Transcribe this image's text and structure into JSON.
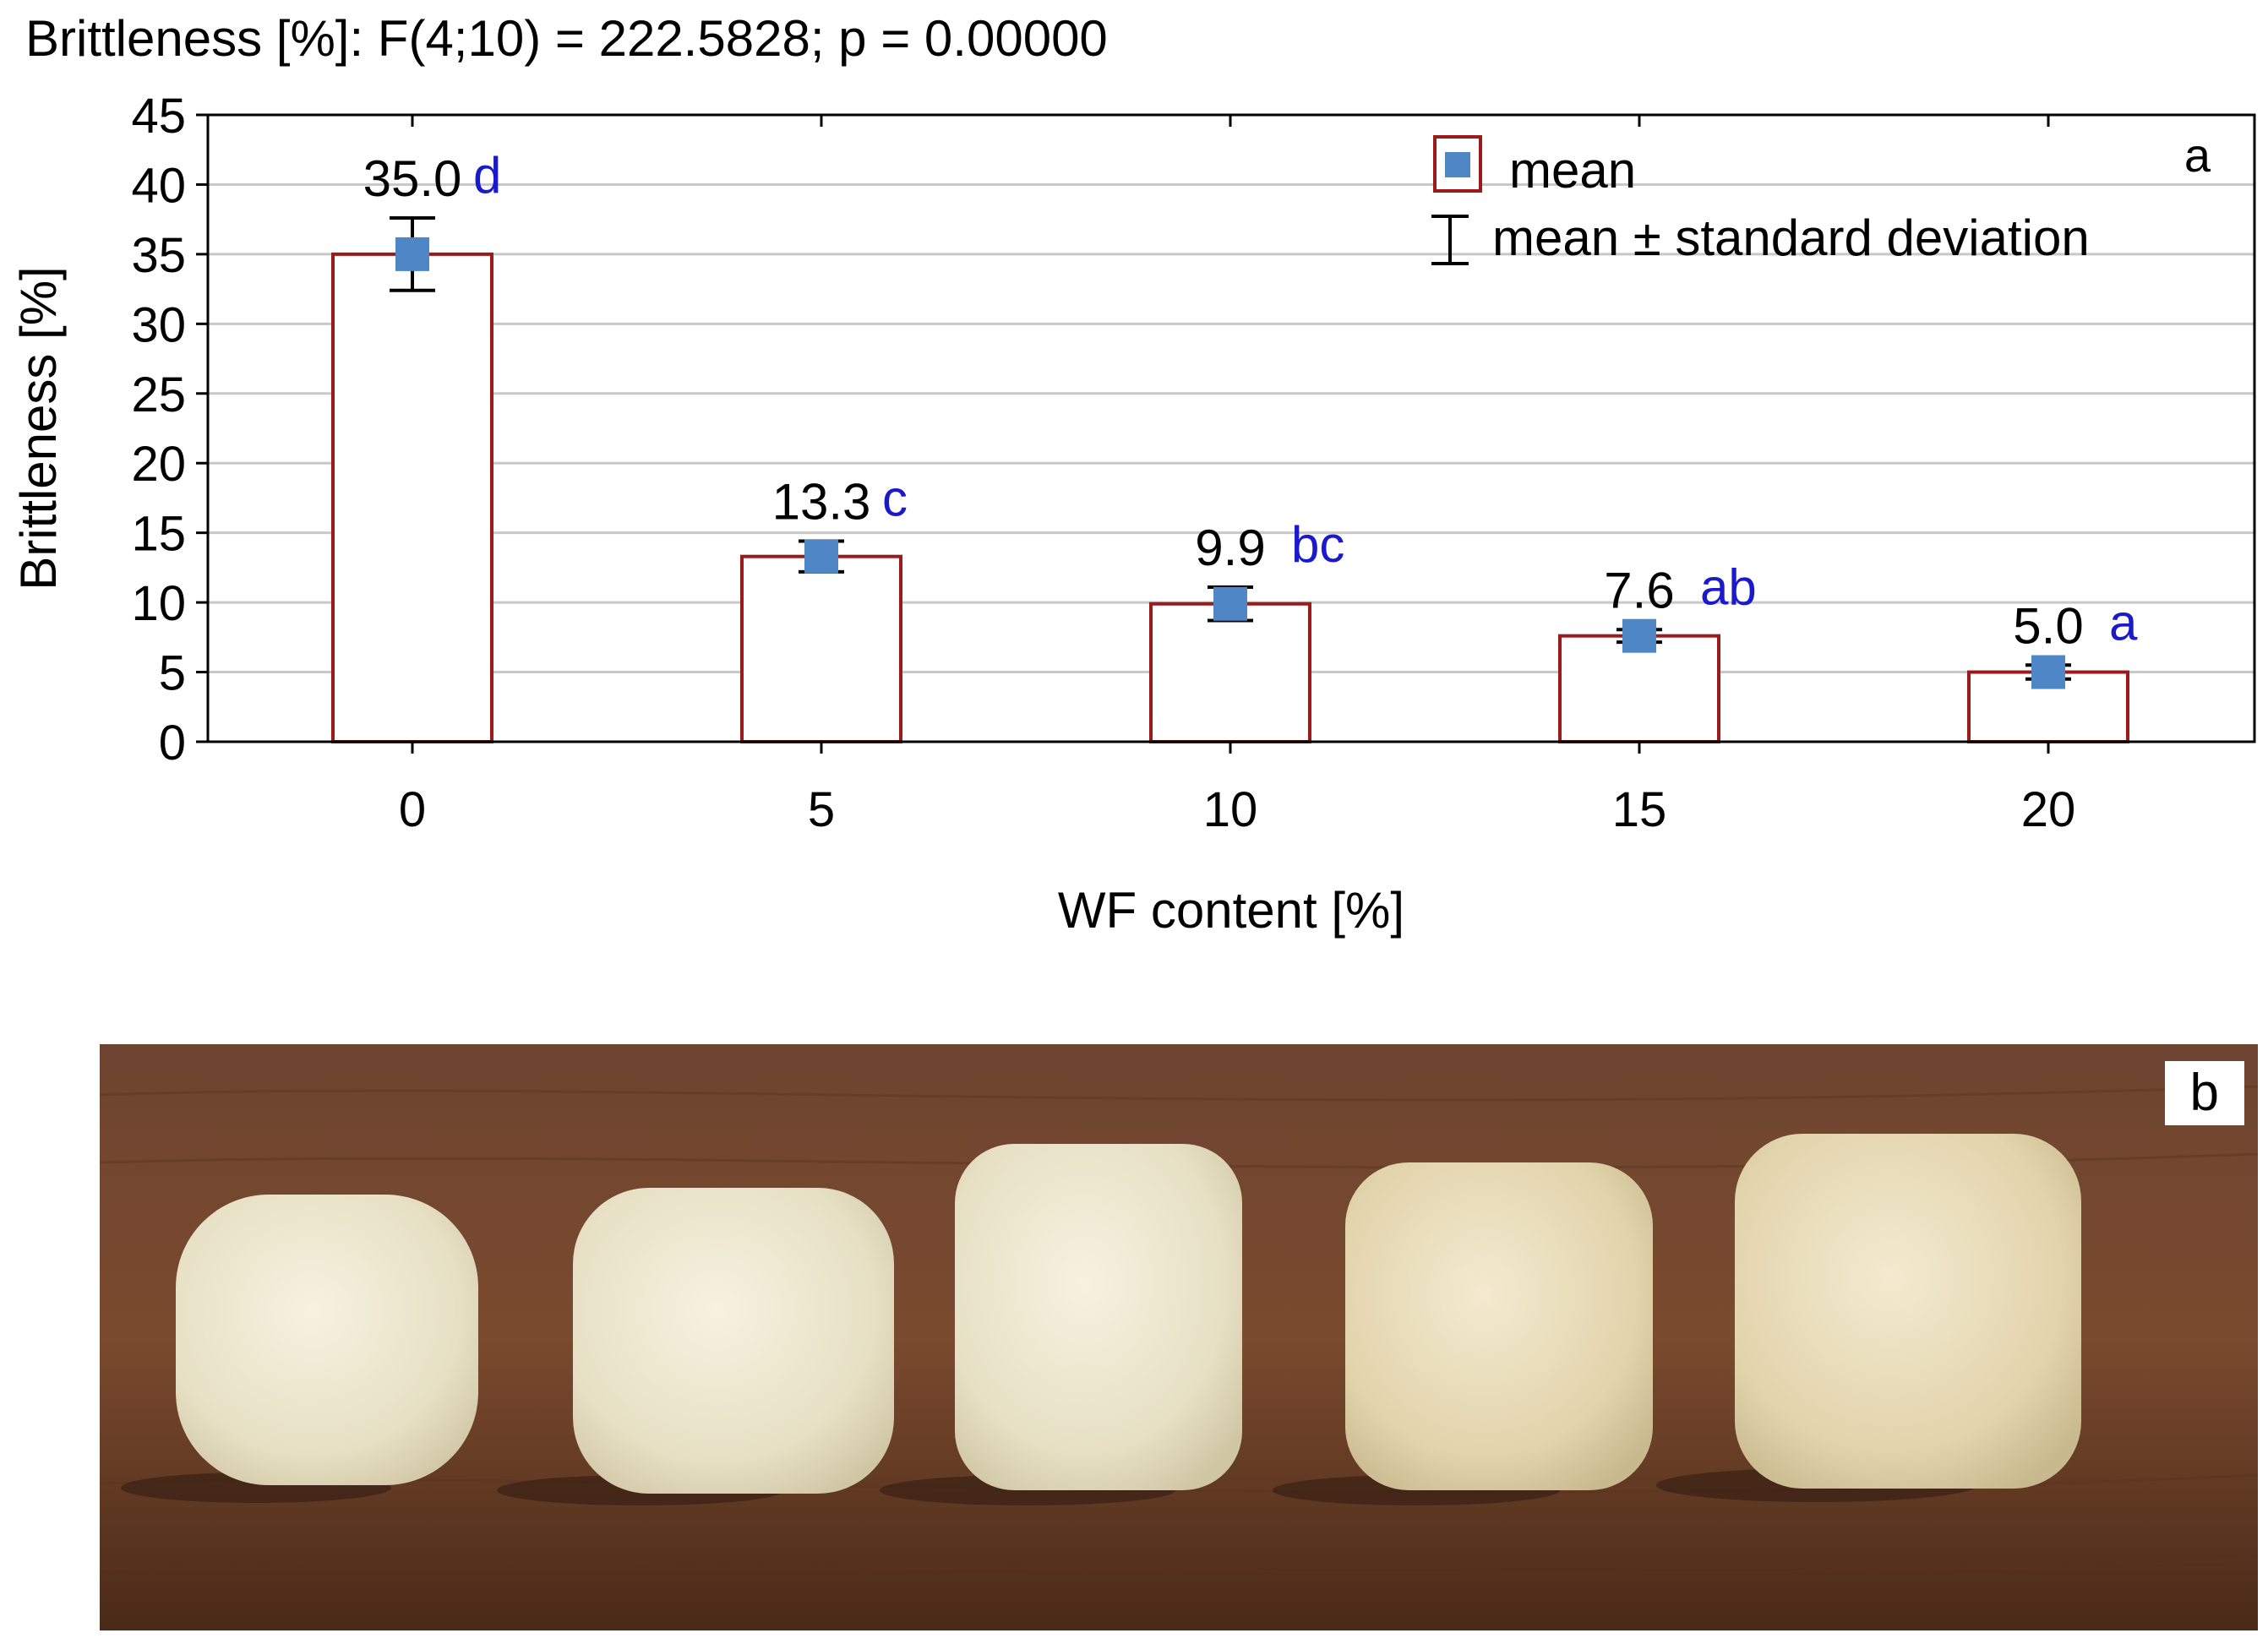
{
  "chart_data": {
    "type": "bar",
    "title": "Brittleness [%]: F(4;10) = 222.5828; p = 0.00000",
    "xlabel": "WF content [%]",
    "ylabel": "Brittleness [%]",
    "categories": [
      "0",
      "5",
      "10",
      "15",
      "20"
    ],
    "ylim": [
      0,
      45
    ],
    "yticks": [
      0,
      5,
      10,
      15,
      20,
      25,
      30,
      35,
      40,
      45
    ],
    "ytick_labels": [
      "0",
      "5",
      "10",
      "15",
      "20",
      "25",
      "30",
      "35",
      "40",
      "45"
    ],
    "series": [
      {
        "name": "mean",
        "values": [
          35.0,
          13.3,
          9.9,
          7.6,
          5.0
        ],
        "sd": [
          2.6,
          1.1,
          1.2,
          0.45,
          0.5
        ],
        "value_labels": [
          "35.0",
          "13.3",
          "9.9",
          "7.6",
          "5.0"
        ],
        "group_letters": [
          "d",
          "c",
          "bc",
          "ab",
          "a"
        ]
      }
    ],
    "legend": {
      "placement": "top-right",
      "entries": [
        "mean",
        "mean ± standard deviation"
      ]
    },
    "panel_label": "a",
    "grid": true
  },
  "colors": {
    "bar_edge": "#9b1b1b",
    "bar_fill": "#ffffff",
    "marker": "#4f86c6",
    "letters": "#1a1acc",
    "grid": "#c8c8c8",
    "axis": "#000000",
    "wood_dark": "#4a2a18",
    "wood_light": "#7a4a2e",
    "sample": "#ece6cc"
  },
  "photo": {
    "panel_label": "b",
    "sample_count": 5
  }
}
